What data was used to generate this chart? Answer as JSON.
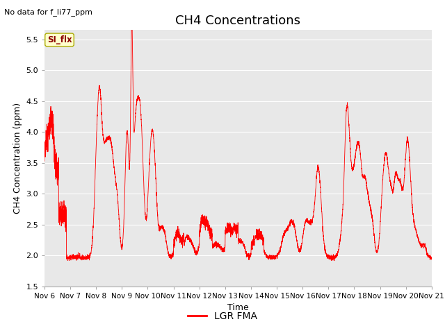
{
  "title": "CH4 Concentrations",
  "xlabel": "Time",
  "ylabel": "CH4 Concentration (ppm)",
  "top_left_text": "No data for f_li77_ppm",
  "legend_label": "LGR FMA",
  "legend_label2": "SI_flx",
  "ylim": [
    1.5,
    5.65
  ],
  "yticks": [
    1.5,
    2.0,
    2.5,
    3.0,
    3.5,
    4.0,
    4.5,
    5.0,
    5.5
  ],
  "xtick_labels": [
    "Nov 6",
    "Nov 7",
    "Nov 8",
    "Nov 9",
    "Nov 10",
    "Nov 11",
    "Nov 12",
    "Nov 13",
    "Nov 14",
    "Nov 15",
    "Nov 16",
    "Nov 17",
    "Nov 18",
    "Nov 19",
    "Nov 20",
    "Nov 21"
  ],
  "line_color": "#ff0000",
  "bg_color": "#e8e8e8",
  "fig_bg": "#ffffff",
  "title_fontsize": 13,
  "label_fontsize": 9,
  "tick_fontsize": 8
}
